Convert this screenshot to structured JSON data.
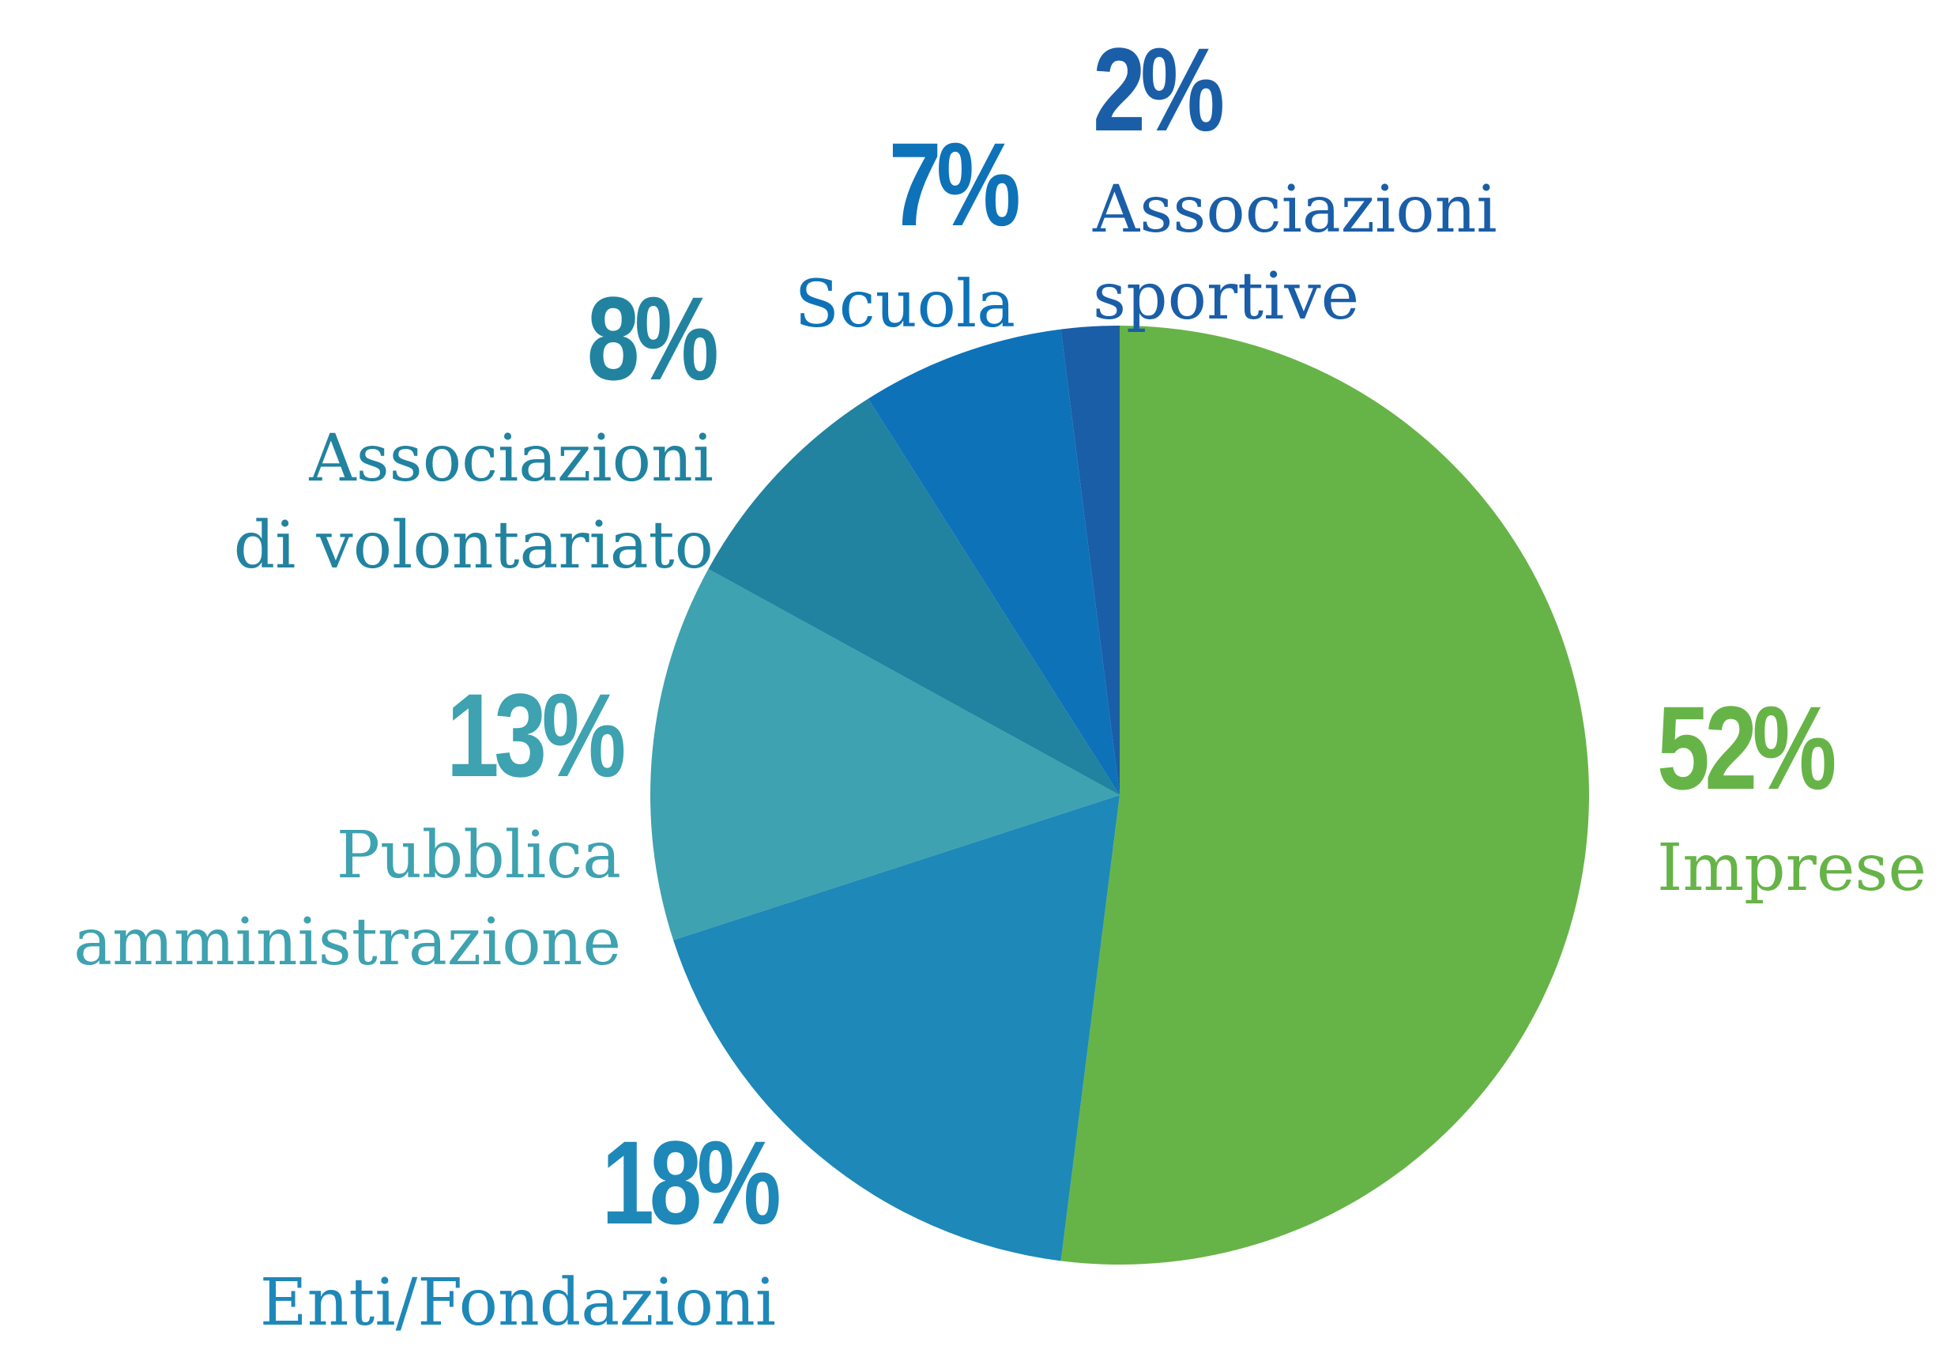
{
  "chart_data": {
    "type": "pie",
    "categories": [
      "Imprese",
      "Enti/Fondazioni",
      "Pubblica\namministrazione",
      "Associazioni\ndi volontariato",
      "Scuola",
      "Associazioni\nsportive"
    ],
    "values": [
      52,
      18,
      13,
      8,
      7,
      2
    ],
    "value_labels": [
      "52%",
      "18%",
      "13%",
      "8%",
      "7%",
      "2%"
    ],
    "colors": [
      "#66b447",
      "#1e88b8",
      "#3ea2b0",
      "#2183a0",
      "#0e72b8",
      "#1a5ea8"
    ]
  }
}
